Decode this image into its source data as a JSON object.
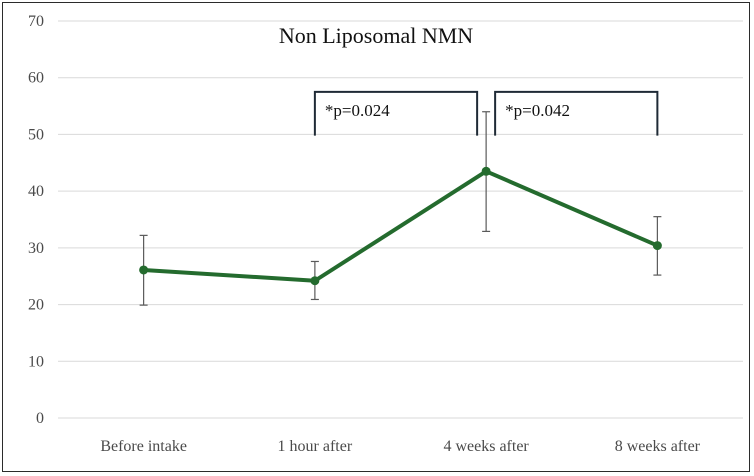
{
  "chart_data": {
    "type": "line",
    "title": "Non Liposomal  NMN",
    "xlabel": "",
    "ylabel": "",
    "categories": [
      "Before intake",
      "1 hour after",
      "4 weeks after",
      "8 weeks after"
    ],
    "series": [
      {
        "values": [
          26.1,
          24.2,
          43.5,
          30.4
        ],
        "error_low": [
          19.9,
          20.9,
          32.9,
          25.2
        ],
        "error_high": [
          32.2,
          27.6,
          54.0,
          35.5
        ]
      }
    ],
    "ylim": [
      0,
      70
    ],
    "yticks": [
      "0",
      "10",
      "20",
      "30",
      "40",
      "50",
      "60",
      "70"
    ],
    "grid": true,
    "colors": {
      "line": "#246b2e",
      "grid": "#d9d9d9",
      "error_bar": "#5a5a5a",
      "bracket": "#1f2a36"
    },
    "annotations": [
      {
        "text": "*p=0.024",
        "from_category": 1,
        "to_category": 2
      },
      {
        "text": "*p=0.042",
        "from_category": 2,
        "to_category": 3
      }
    ]
  }
}
